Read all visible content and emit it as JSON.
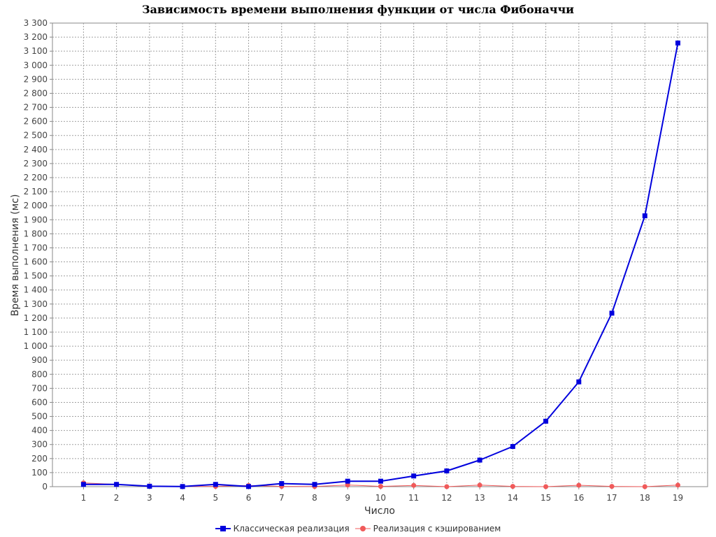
{
  "chart_data": {
    "type": "line",
    "title": "Зависимость времени выполнения функции от числа Фибоначчи",
    "xlabel": "Число",
    "ylabel": "Время выполнения (мс)",
    "x": [
      1,
      2,
      3,
      4,
      5,
      6,
      7,
      8,
      9,
      10,
      11,
      12,
      13,
      14,
      15,
      16,
      17,
      18,
      19
    ],
    "x_tick_labels": [
      "1",
      "2",
      "3",
      "4",
      "5",
      "6",
      "7",
      "8",
      "9",
      "10",
      "11",
      "12",
      "13",
      "14",
      "15",
      "16",
      "17",
      "18",
      "19"
    ],
    "ylim": [
      0,
      3300
    ],
    "y_ticks": [
      0,
      100,
      200,
      300,
      400,
      500,
      600,
      700,
      800,
      900,
      1000,
      1100,
      1200,
      1300,
      1400,
      1500,
      1600,
      1700,
      1800,
      1900,
      2000,
      2100,
      2200,
      2300,
      2400,
      2500,
      2600,
      2700,
      2800,
      2900,
      3000,
      3100,
      3200,
      3300
    ],
    "y_tick_labels": [
      "0",
      "100",
      "200",
      "300",
      "400",
      "500",
      "600",
      "700",
      "800",
      "900",
      "1 000",
      "1 100",
      "1 200",
      "1 300",
      "1 400",
      "1 500",
      "1 600",
      "1 700",
      "1 800",
      "1 900",
      "2 000",
      "2 100",
      "2 200",
      "2 300",
      "2 400",
      "2 500",
      "2 600",
      "2 700",
      "2 800",
      "2 900",
      "3 000",
      "3 100",
      "3 200",
      "3 300"
    ],
    "grid": true,
    "legend_position": "bottom",
    "series": [
      {
        "name": "Классическая реализация",
        "color": "#0000dd",
        "marker": "square",
        "values": [
          16,
          16,
          3,
          1,
          16,
          1,
          22,
          16,
          39,
          39,
          76,
          112,
          189,
          286,
          466,
          746,
          1235,
          1928,
          3158
        ]
      },
      {
        "name": "Реализация с кэшированием",
        "color": "#f05a5a",
        "marker": "circle",
        "values": [
          27,
          16,
          5,
          1,
          2,
          8,
          2,
          1,
          12,
          2,
          9,
          0,
          11,
          2,
          0,
          10,
          2,
          0,
          11
        ]
      }
    ]
  }
}
